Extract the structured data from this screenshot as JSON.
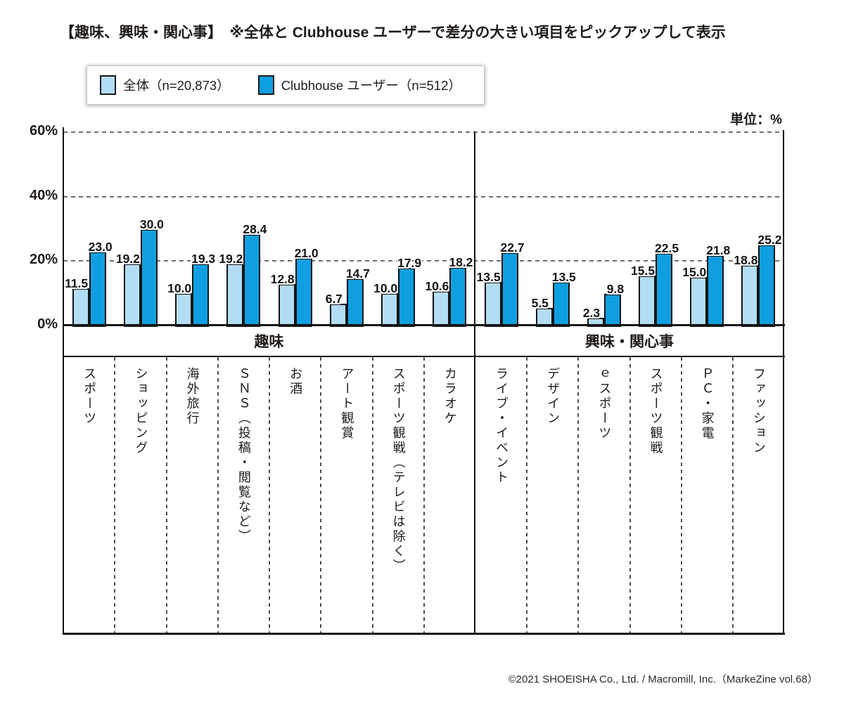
{
  "title": "【趣味、興味・関心事】　※全体と Clubhouse ユーザーで差分の大きい項目をピックアップして表示",
  "unit_label": "単位：%",
  "footer": "©2021 SHOEISHA Co., Ltd. / Macromill, Inc.（MarkeZine vol.68）",
  "chart_data": {
    "type": "bar",
    "title": "趣味、興味・関心事（全体とClubhouseユーザーの比較）",
    "ylabel": "%",
    "ylim": [
      0,
      60
    ],
    "yticks": [
      {
        "label": "0%",
        "value": 0
      },
      {
        "label": "20%",
        "value": 20
      },
      {
        "label": "40%",
        "value": 40
      },
      {
        "label": "60%",
        "value": 60
      }
    ],
    "grid": "dashed-horizontal",
    "legend_position": "top-left",
    "groups": [
      {
        "label": "趣味",
        "count": 8
      },
      {
        "label": "興味・関心事",
        "count": 6
      }
    ],
    "categories": [
      "スポーツ",
      "ショッピング",
      "海外旅行",
      "ＳＮＳ（投稿・閲覧など）",
      "お酒",
      "アート観賞",
      "スポーツ観戦（テレビは除く）",
      "カラオケ",
      "ライブ・イベント",
      "デザイン",
      "ｅスポーツ",
      "スポーツ観戦",
      "ＰＣ・家電",
      "ファッション"
    ],
    "series": [
      {
        "name": "全体（n=20,873）",
        "color": "#b3ddf4",
        "values": [
          11.5,
          19.2,
          10.0,
          19.2,
          12.8,
          6.7,
          10.0,
          10.6,
          13.5,
          5.5,
          2.3,
          15.5,
          15.0,
          18.8
        ]
      },
      {
        "name": "Clubhouse ユーザー（n=512）",
        "color": "#0f9fe0",
        "values": [
          23.0,
          30.0,
          19.3,
          28.4,
          21.0,
          14.7,
          17.9,
          18.2,
          22.7,
          13.5,
          9.8,
          22.5,
          21.8,
          25.2
        ]
      }
    ]
  }
}
